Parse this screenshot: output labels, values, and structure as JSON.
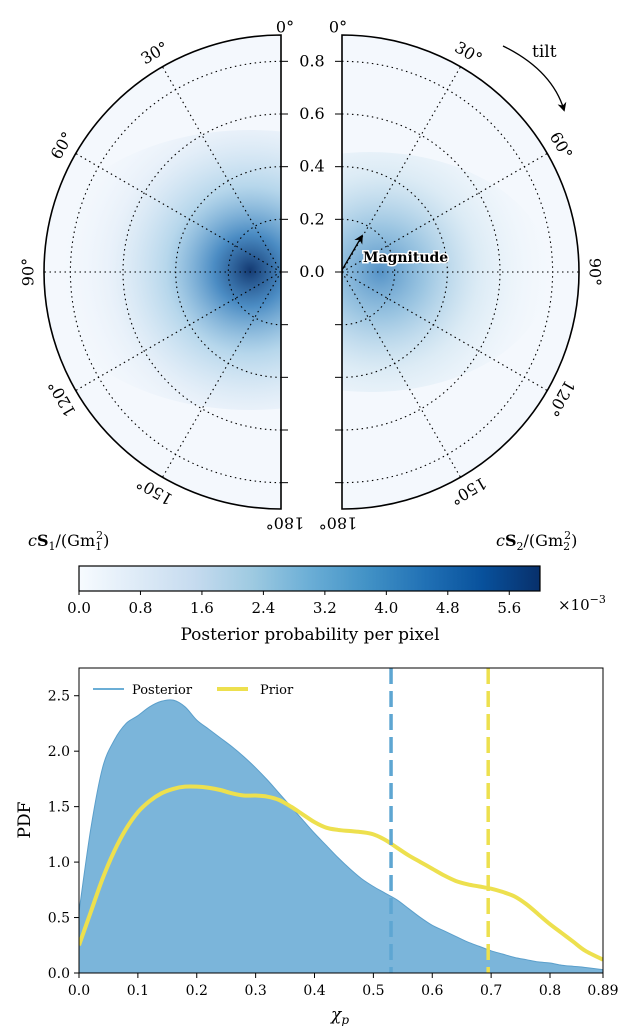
{
  "chart_data": [
    {
      "type": "heatmap",
      "subtype": "polar-half-disks",
      "left_panel": {
        "label_prefix": "c",
        "label_vec": "S",
        "label_sub": "1",
        "label_div": "/(Gm",
        "label_div_sub": "1",
        "label_sup": "2",
        "label_close": ")"
      },
      "right_panel": {
        "label_prefix": "c",
        "label_vec": "S",
        "label_sub": "2",
        "label_div": "/(Gm",
        "label_div_sub": "2",
        "label_sup": "2",
        "label_close": ")"
      },
      "radial_ticks": [
        "0.8",
        "0.6",
        "0.4",
        "0.2",
        "0.0"
      ],
      "radial_tick_values": [
        0.8,
        0.6,
        0.4,
        0.2,
        0.0
      ],
      "radial_range": [
        0,
        0.9
      ],
      "angle_ticks_left": [
        "0°",
        "30°",
        "60°",
        "90°",
        "120°",
        "150°",
        "180°"
      ],
      "angle_ticks_right": [
        "0°",
        "30°",
        "60°",
        "90°",
        "120°",
        "150°",
        "180°"
      ],
      "angle_values": [
        0,
        30,
        60,
        90,
        120,
        150,
        180
      ],
      "annotations": {
        "tilt": "tilt",
        "magnitude": "Magnitude"
      },
      "peak_left": {
        "magnitude": 0.12,
        "tilt_deg": 95
      },
      "peak_right": {
        "magnitude": 0.1,
        "tilt_deg": 90
      },
      "grid": true,
      "colormap": "Blues",
      "colorbar": {
        "ticks": [
          "0.0",
          "0.8",
          "1.6",
          "2.4",
          "3.2",
          "4.0",
          "4.8",
          "5.6"
        ],
        "tick_values": [
          0,
          0.8,
          1.6,
          2.4,
          3.2,
          4.0,
          4.8,
          5.6
        ],
        "range": [
          0,
          6.0
        ],
        "multiplier_base": "×10",
        "multiplier_exp": "−3",
        "label": "Posterior probability per pixel"
      }
    },
    {
      "type": "area",
      "x_ticks": [
        "0.0",
        "0.1",
        "0.2",
        "0.3",
        "0.4",
        "0.5",
        "0.6",
        "0.7",
        "0.8",
        "0.89"
      ],
      "x_tick_values": [
        0,
        0.1,
        0.2,
        0.3,
        0.4,
        0.5,
        0.6,
        0.7,
        0.8,
        0.89
      ],
      "y_ticks": [
        "0.0",
        "0.5",
        "1.0",
        "1.5",
        "2.0",
        "2.5"
      ],
      "y_tick_values": [
        0,
        0.5,
        1.0,
        1.5,
        2.0,
        2.5
      ],
      "xlim": [
        0,
        0.89
      ],
      "ylim": [
        0,
        2.75
      ],
      "xlabel_sym": "χ",
      "xlabel_sub": "p",
      "ylabel": "PDF",
      "legend": {
        "placement": "top-left"
      },
      "x": [
        0.0,
        0.02,
        0.04,
        0.06,
        0.08,
        0.1,
        0.12,
        0.14,
        0.16,
        0.18,
        0.2,
        0.22,
        0.24,
        0.26,
        0.28,
        0.3,
        0.32,
        0.34,
        0.36,
        0.38,
        0.4,
        0.42,
        0.44,
        0.46,
        0.48,
        0.5,
        0.52,
        0.54,
        0.56,
        0.58,
        0.6,
        0.62,
        0.64,
        0.66,
        0.68,
        0.7,
        0.72,
        0.74,
        0.76,
        0.78,
        0.8,
        0.82,
        0.84,
        0.86,
        0.89
      ],
      "series": [
        {
          "name": "Posterior",
          "color": "#6baed6",
          "fill": "#7bb5da",
          "values": [
            0.55,
            1.3,
            1.85,
            2.1,
            2.25,
            2.32,
            2.4,
            2.45,
            2.46,
            2.4,
            2.28,
            2.2,
            2.12,
            2.04,
            1.95,
            1.85,
            1.74,
            1.62,
            1.5,
            1.38,
            1.26,
            1.15,
            1.04,
            0.94,
            0.85,
            0.78,
            0.72,
            0.66,
            0.58,
            0.5,
            0.43,
            0.38,
            0.33,
            0.28,
            0.24,
            0.2,
            0.17,
            0.14,
            0.12,
            0.1,
            0.09,
            0.07,
            0.06,
            0.05,
            0.03
          ]
        },
        {
          "name": "Prior",
          "color": "#ede04e",
          "values": [
            0.25,
            0.55,
            0.85,
            1.1,
            1.3,
            1.45,
            1.55,
            1.62,
            1.66,
            1.68,
            1.68,
            1.67,
            1.65,
            1.62,
            1.6,
            1.6,
            1.59,
            1.56,
            1.5,
            1.43,
            1.36,
            1.31,
            1.29,
            1.28,
            1.27,
            1.25,
            1.2,
            1.13,
            1.06,
            1.0,
            0.94,
            0.88,
            0.83,
            0.8,
            0.78,
            0.76,
            0.73,
            0.69,
            0.62,
            0.53,
            0.44,
            0.36,
            0.28,
            0.2,
            0.12
          ]
        }
      ],
      "vlines": [
        {
          "x": 0.53,
          "color": "#5ea6d2",
          "series": "Posterior"
        },
        {
          "x": 0.695,
          "color": "#ede04e",
          "series": "Prior"
        }
      ]
    }
  ]
}
